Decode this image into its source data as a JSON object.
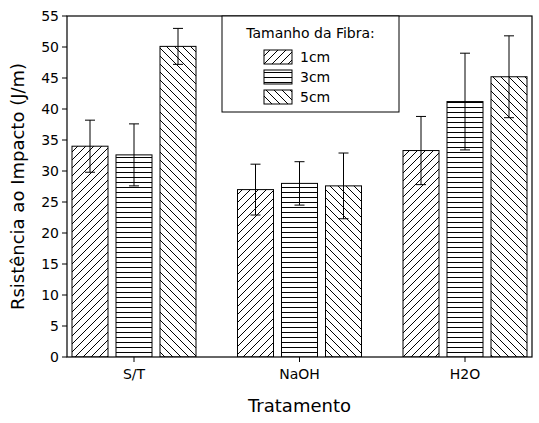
{
  "chart_data": {
    "type": "bar",
    "x_label": "Tratamento",
    "y_label": "Rsistência ao Impacto (J/m)",
    "legend_title": "Tamanho da Fibra:",
    "legend": "top",
    "categories": [
      "S/T",
      "NaOH",
      "H2O"
    ],
    "series": [
      {
        "name": "1cm",
        "color": "#000000",
        "values": [
          34.0,
          27.0,
          33.3
        ],
        "errors": [
          4.2,
          4.1,
          5.5
        ]
      },
      {
        "name": "3cm",
        "color": "#000000",
        "values": [
          32.6,
          28.0,
          41.2
        ],
        "errors": [
          5.0,
          3.5,
          7.8
        ]
      },
      {
        "name": "5cm",
        "color": "#000000",
        "values": [
          50.1,
          27.6,
          45.2
        ],
        "errors": [
          2.9,
          5.3,
          6.6
        ]
      }
    ],
    "ylim": [
      0,
      55
    ],
    "yticks": [
      0,
      5,
      10,
      15,
      20,
      25,
      30,
      35,
      40,
      45,
      50,
      55
    ],
    "grid": false
  }
}
